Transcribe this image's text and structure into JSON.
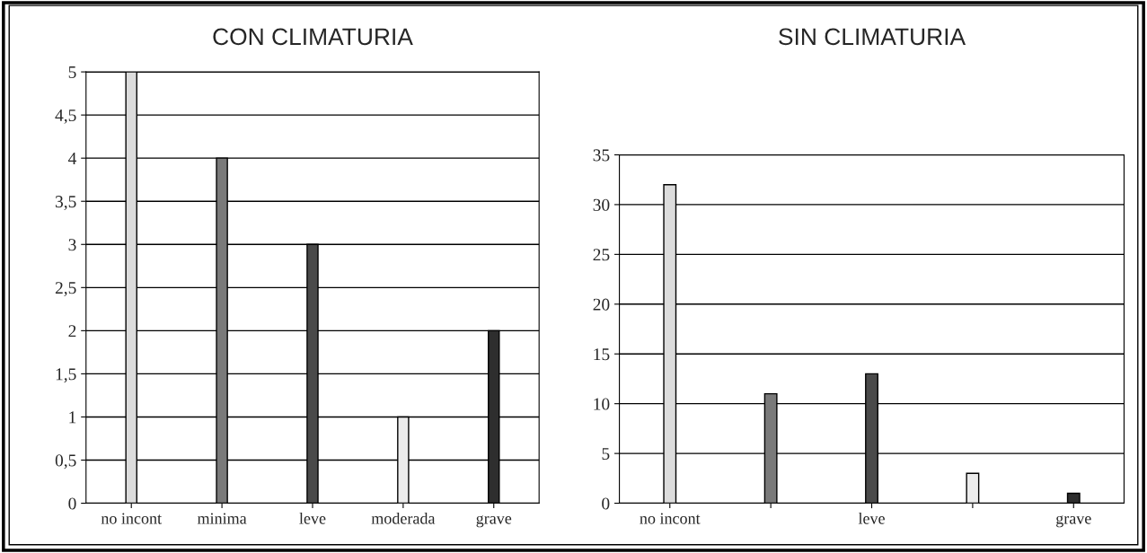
{
  "chart_data": [
    {
      "type": "bar",
      "title": "CON CLIMATURIA",
      "categories": [
        "no incont",
        "minima",
        "leve",
        "moderada",
        "grave"
      ],
      "values": [
        5,
        4,
        3,
        1,
        2
      ],
      "colors": [
        "#dcdcdc",
        "#7a7a7a",
        "#4a4a4a",
        "#ececec",
        "#2e2e2e"
      ],
      "ylim": [
        0,
        5
      ],
      "yticks": [
        0,
        {
          "value": 0.5,
          "label": "0,5"
        },
        1,
        {
          "value": 1.5,
          "label": "1,5"
        },
        2,
        {
          "value": 2.5,
          "label": "2,5"
        },
        3,
        {
          "value": 3.5,
          "label": "3,5"
        },
        4,
        {
          "value": 4.5,
          "label": "4,5"
        },
        5
      ],
      "grid": "y",
      "legend": false
    },
    {
      "type": "bar",
      "title": "SIN CLIMATURIA",
      "categories": [
        "no incont",
        null,
        "leve",
        null,
        "grave"
      ],
      "values": [
        32,
        11,
        13,
        3,
        1
      ],
      "colors": [
        "#dcdcdc",
        "#7a7a7a",
        "#4a4a4a",
        "#ececec",
        "#2e2e2e"
      ],
      "ylim": [
        0,
        35
      ],
      "yticks": [
        0,
        5,
        10,
        15,
        20,
        25,
        30,
        35
      ],
      "grid": "y",
      "legend": false
    }
  ]
}
